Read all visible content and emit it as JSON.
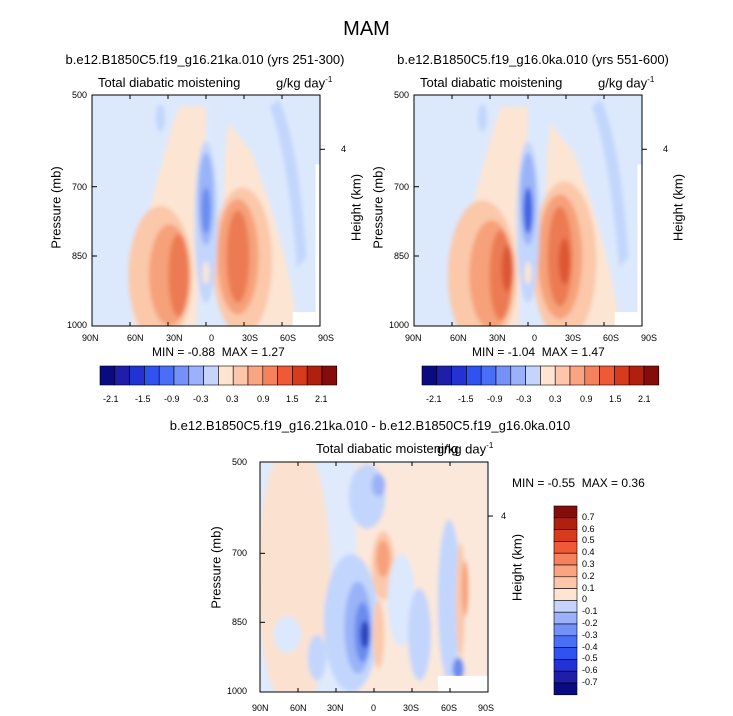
{
  "title": "MAM",
  "colors": {
    "min_end": "#0a0a82",
    "max_end": "#8b0000",
    "zero": "#ffffff"
  },
  "chart_data": [
    {
      "type": "contour",
      "title": "b.e12.B1850C5.f19_g16.21ka.010 (yrs 251-300)",
      "left_string": "Total diabatic moistening",
      "right_string": "g/kg day",
      "units_exponent": "-1",
      "xlabel": "",
      "ylabel": "Pressure (mb)",
      "y2label": "Height (km)",
      "x_ticks": [
        "90N",
        "60N",
        "30N",
        "0",
        "30S",
        "60S",
        "90S"
      ],
      "y_ticks": [
        "500",
        "700",
        "850",
        "1000"
      ],
      "y2_ticks": [
        "4"
      ],
      "min_label": "MIN =",
      "min": "-0.88",
      "max_label": "MAX =",
      "max": "1.27",
      "colorbar_labels": [
        "-2.1",
        "-1.5",
        "-0.9",
        "-0.3",
        "0.3",
        "0.9",
        "1.5",
        "2.1"
      ]
    },
    {
      "type": "contour",
      "title": "b.e12.B1850C5.f19_g16.0ka.010 (yrs 551-600)",
      "left_string": "Total diabatic moistening",
      "right_string": "g/kg day",
      "units_exponent": "-1",
      "xlabel": "",
      "ylabel": "Pressure (mb)",
      "y2label": "Height (km)",
      "x_ticks": [
        "90N",
        "60N",
        "30N",
        "0",
        "30S",
        "60S",
        "90S"
      ],
      "y_ticks": [
        "500",
        "700",
        "850",
        "1000"
      ],
      "y2_ticks": [
        "4"
      ],
      "min_label": "MIN =",
      "min": "-1.04",
      "max_label": "MAX =",
      "max": "1.47",
      "colorbar_labels": [
        "-2.1",
        "-1.5",
        "-0.9",
        "-0.3",
        "0.3",
        "0.9",
        "1.5",
        "2.1"
      ]
    },
    {
      "type": "contour",
      "title": "b.e12.B1850C5.f19_g16.21ka.010 - b.e12.B1850C5.f19_g16.0ka.010",
      "left_string": "Total diabatic moistening",
      "right_string": "g/kg day",
      "units_exponent": "-1",
      "xlabel": "",
      "ylabel": "Pressure (mb)",
      "y2label": "Height (km)",
      "x_ticks": [
        "90N",
        "60N",
        "30N",
        "0",
        "30S",
        "60S",
        "90S"
      ],
      "y_ticks": [
        "500",
        "700",
        "850",
        "1000"
      ],
      "y2_ticks": [
        "4"
      ],
      "min_label": "MIN =",
      "min": "-0.55",
      "max_label": "MAX =",
      "max": "0.36",
      "colorbar_labels": [
        "0.7",
        "0.6",
        "0.5",
        "0.4",
        "0.3",
        "0.2",
        "0.1",
        "0",
        "-0.1",
        "-0.2",
        "-0.3",
        "-0.4",
        "-0.5",
        "-0.6",
        "-0.7"
      ]
    }
  ]
}
